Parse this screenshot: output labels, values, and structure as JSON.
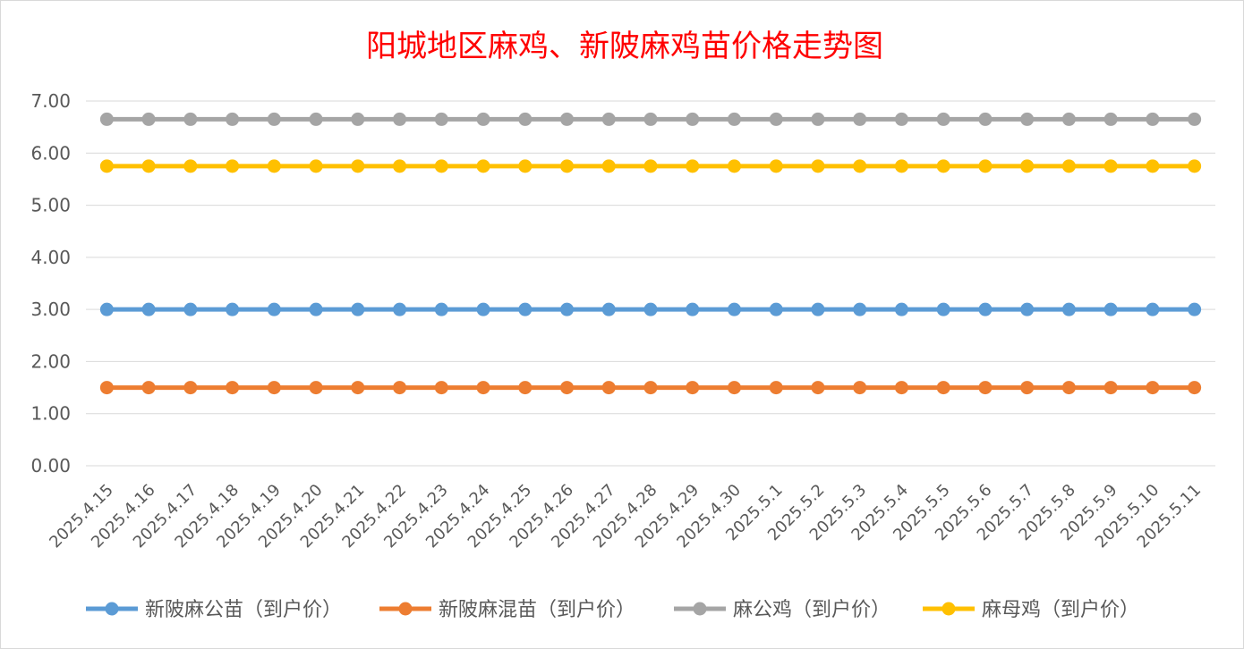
{
  "chart_data": {
    "type": "line",
    "title": "阳城地区麻鸡、新陂麻鸡苗价格走势图",
    "xlabel": "",
    "ylabel": "",
    "ylim": [
      0,
      7
    ],
    "yticks": [
      "0.00",
      "1.00",
      "2.00",
      "3.00",
      "4.00",
      "5.00",
      "6.00",
      "7.00"
    ],
    "grid": true,
    "legend_position": "bottom",
    "categories": [
      "2025.4.15",
      "2025.4.16",
      "2025.4.17",
      "2025.4.18",
      "2025.4.19",
      "2025.4.20",
      "2025.4.21",
      "2025.4.22",
      "2025.4.23",
      "2025.4.24",
      "2025.4.25",
      "2025.4.26",
      "2025.4.27",
      "2025.4.28",
      "2025.4.29",
      "2025.4.30",
      "2025.5.1",
      "2025.5.2",
      "2025.5.3",
      "2025.5.4",
      "2025.5.5",
      "2025.5.6",
      "2025.5.7",
      "2025.5.8",
      "2025.5.9",
      "2025.5.10",
      "2025.5.11"
    ],
    "series": [
      {
        "name": "新陂麻公苗（到户价）",
        "color": "#5b9bd5",
        "values": [
          3,
          3,
          3,
          3,
          3,
          3,
          3,
          3,
          3,
          3,
          3,
          3,
          3,
          3,
          3,
          3,
          3,
          3,
          3,
          3,
          3,
          3,
          3,
          3,
          3,
          3,
          3
        ]
      },
      {
        "name": "新陂麻混苗（到户价）",
        "color": "#ed7d31",
        "values": [
          1.5,
          1.5,
          1.5,
          1.5,
          1.5,
          1.5,
          1.5,
          1.5,
          1.5,
          1.5,
          1.5,
          1.5,
          1.5,
          1.5,
          1.5,
          1.5,
          1.5,
          1.5,
          1.5,
          1.5,
          1.5,
          1.5,
          1.5,
          1.5,
          1.5,
          1.5,
          1.5
        ]
      },
      {
        "name": "麻公鸡（到户价）",
        "color": "#a5a5a5",
        "values": [
          6.65,
          6.65,
          6.65,
          6.65,
          6.65,
          6.65,
          6.65,
          6.65,
          6.65,
          6.65,
          6.65,
          6.65,
          6.65,
          6.65,
          6.65,
          6.65,
          6.65,
          6.65,
          6.65,
          6.65,
          6.65,
          6.65,
          6.65,
          6.65,
          6.65,
          6.65,
          6.65
        ]
      },
      {
        "name": "麻母鸡（到户价）",
        "color": "#ffc000",
        "values": [
          5.75,
          5.75,
          5.75,
          5.75,
          5.75,
          5.75,
          5.75,
          5.75,
          5.75,
          5.75,
          5.75,
          5.75,
          5.75,
          5.75,
          5.75,
          5.75,
          5.75,
          5.75,
          5.75,
          5.75,
          5.75,
          5.75,
          5.75,
          5.75,
          5.75,
          5.75,
          5.75
        ]
      }
    ]
  }
}
